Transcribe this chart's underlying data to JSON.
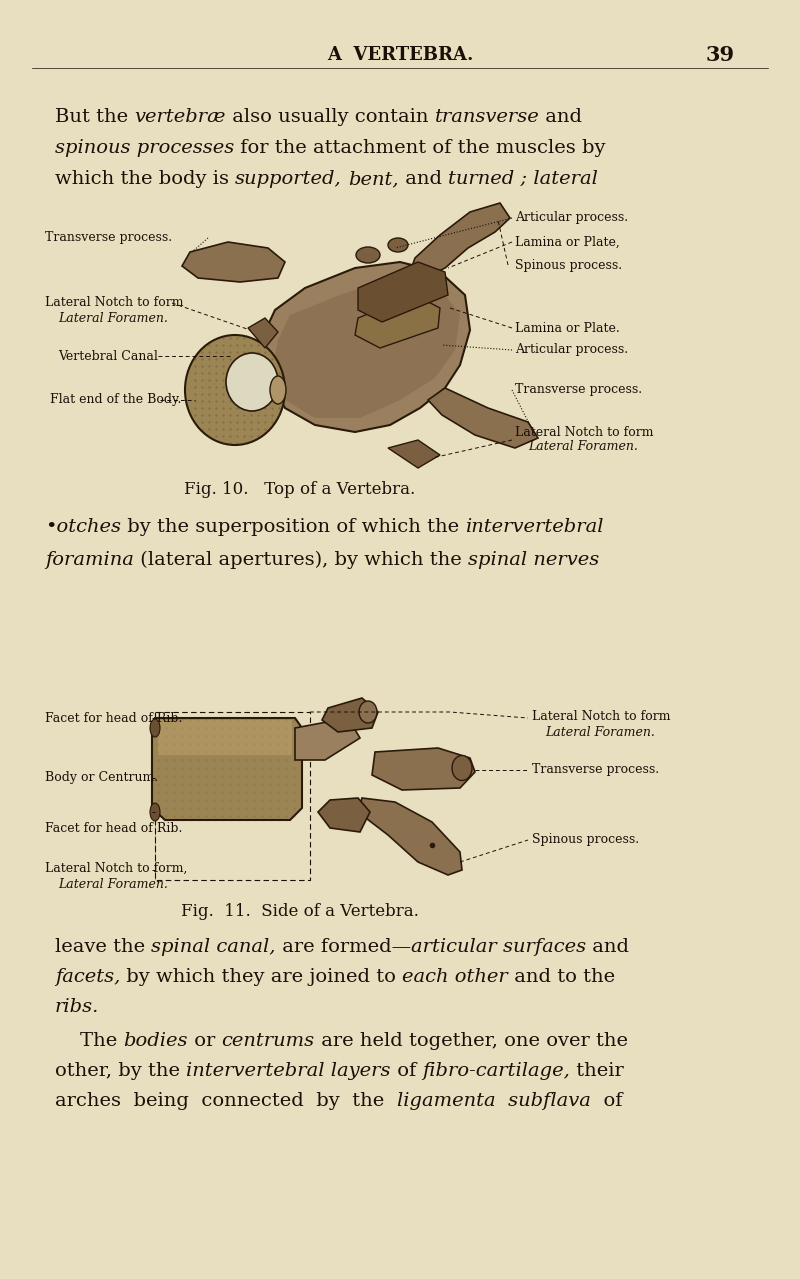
{
  "bg_color": "#e8dfc0",
  "text_color": "#1a1008",
  "page_title": "A  VERTEBRA.",
  "page_number": "39",
  "fig10_caption": "Fig. 10.   Top of a Vertebra.",
  "fig11_caption": "Fig.  11.  Side of a Vertebra."
}
